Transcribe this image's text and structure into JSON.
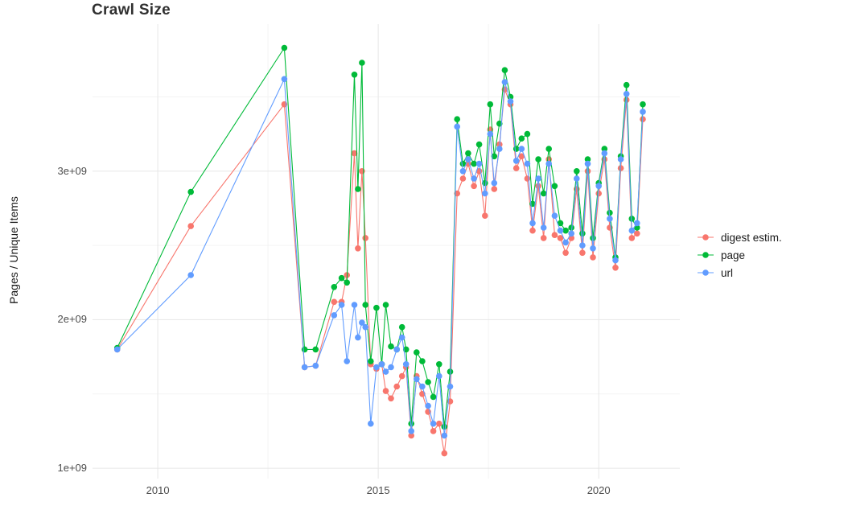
{
  "chart": {
    "title": "Crawl Size",
    "ylabel": "Pages / Unique Items"
  },
  "chart_data": {
    "type": "line",
    "title": "Crawl Size",
    "xlabel": "",
    "ylabel": "Pages / Unique Items",
    "x_unit": "year",
    "y_unit": "pages / unique items (values in billions, 1e9)",
    "background": "#ffffff",
    "grid": true,
    "legend_position": "right",
    "xlim": [
      2008.52,
      2021.84
    ],
    "ylim_billions": [
      0.93,
      3.99
    ],
    "x_ticks": [
      2010,
      2015,
      2020
    ],
    "x_tick_labels": [
      "2010",
      "2015",
      "2020"
    ],
    "x_minor_gridlines": [
      2012.5,
      2017.5
    ],
    "y_ticks_billions": [
      1,
      2,
      3
    ],
    "y_tick_labels": [
      "1e+09",
      "2e+09",
      "3e+09"
    ],
    "y_minor_gridlines_billions": [
      1.5,
      2.5,
      3.5
    ],
    "x": [
      2009.08,
      2010.75,
      2012.87,
      2013.33,
      2013.58,
      2014.0,
      2014.17,
      2014.29,
      2014.46,
      2014.54,
      2014.63,
      2014.71,
      2014.83,
      2014.96,
      2015.08,
      2015.17,
      2015.29,
      2015.42,
      2015.54,
      2015.63,
      2015.75,
      2015.87,
      2016.0,
      2016.13,
      2016.25,
      2016.38,
      2016.5,
      2016.63,
      2016.79,
      2016.92,
      2017.04,
      2017.17,
      2017.29,
      2017.42,
      2017.54,
      2017.63,
      2017.75,
      2017.87,
      2018.0,
      2018.13,
      2018.25,
      2018.38,
      2018.5,
      2018.63,
      2018.75,
      2018.87,
      2019.0,
      2019.13,
      2019.25,
      2019.38,
      2019.5,
      2019.63,
      2019.75,
      2019.87,
      2020.0,
      2020.13,
      2020.25,
      2020.38,
      2020.5,
      2020.63,
      2020.75,
      2020.87,
      2021.0
    ],
    "series": [
      {
        "name": "digest estim.",
        "color": "#F8766D",
        "values_billions": [
          1.8,
          2.63,
          3.45,
          1.68,
          1.69,
          2.12,
          2.12,
          2.3,
          3.12,
          2.48,
          3.0,
          2.55,
          1.7,
          1.67,
          1.7,
          1.52,
          1.47,
          1.55,
          1.62,
          1.68,
          1.22,
          1.62,
          1.5,
          1.38,
          1.25,
          1.3,
          1.1,
          1.45,
          2.85,
          2.95,
          3.05,
          2.9,
          3.0,
          2.7,
          3.28,
          2.88,
          3.18,
          3.55,
          3.45,
          3.02,
          3.1,
          2.95,
          2.6,
          2.9,
          2.55,
          3.08,
          2.57,
          2.55,
          2.45,
          2.55,
          2.88,
          2.45,
          3.0,
          2.42,
          2.85,
          3.08,
          2.62,
          2.35,
          3.02,
          3.48,
          2.55,
          2.58,
          3.35
        ]
      },
      {
        "name": "page",
        "color": "#00BA38",
        "values_billions": [
          1.81,
          2.86,
          3.83,
          1.8,
          1.8,
          2.22,
          2.28,
          2.25,
          3.65,
          2.88,
          3.73,
          2.1,
          1.72,
          2.08,
          1.7,
          2.1,
          1.82,
          1.8,
          1.95,
          1.8,
          1.3,
          1.78,
          1.72,
          1.58,
          1.48,
          1.7,
          1.28,
          1.65,
          3.35,
          3.05,
          3.12,
          3.05,
          3.18,
          2.92,
          3.45,
          3.1,
          3.32,
          3.68,
          3.5,
          3.15,
          3.22,
          3.25,
          2.78,
          3.08,
          2.85,
          3.15,
          2.9,
          2.65,
          2.6,
          2.62,
          3.0,
          2.58,
          3.08,
          2.55,
          2.92,
          3.15,
          2.72,
          2.42,
          3.1,
          3.58,
          2.68,
          2.62,
          3.45
        ]
      },
      {
        "name": "url",
        "color": "#619CFF",
        "values_billions": [
          1.8,
          2.3,
          3.62,
          1.68,
          1.69,
          2.03,
          2.1,
          1.72,
          2.1,
          1.88,
          1.98,
          1.95,
          1.3,
          1.68,
          1.7,
          1.65,
          1.68,
          1.8,
          1.88,
          1.7,
          1.25,
          1.6,
          1.55,
          1.42,
          1.3,
          1.62,
          1.22,
          1.55,
          3.3,
          3.0,
          3.08,
          2.95,
          3.05,
          2.85,
          3.25,
          2.92,
          3.15,
          3.6,
          3.47,
          3.07,
          3.15,
          3.05,
          2.65,
          2.95,
          2.62,
          3.05,
          2.7,
          2.6,
          2.52,
          2.58,
          2.95,
          2.5,
          3.05,
          2.48,
          2.9,
          3.12,
          2.68,
          2.4,
          3.08,
          3.52,
          2.6,
          2.65,
          3.4
        ]
      }
    ]
  }
}
